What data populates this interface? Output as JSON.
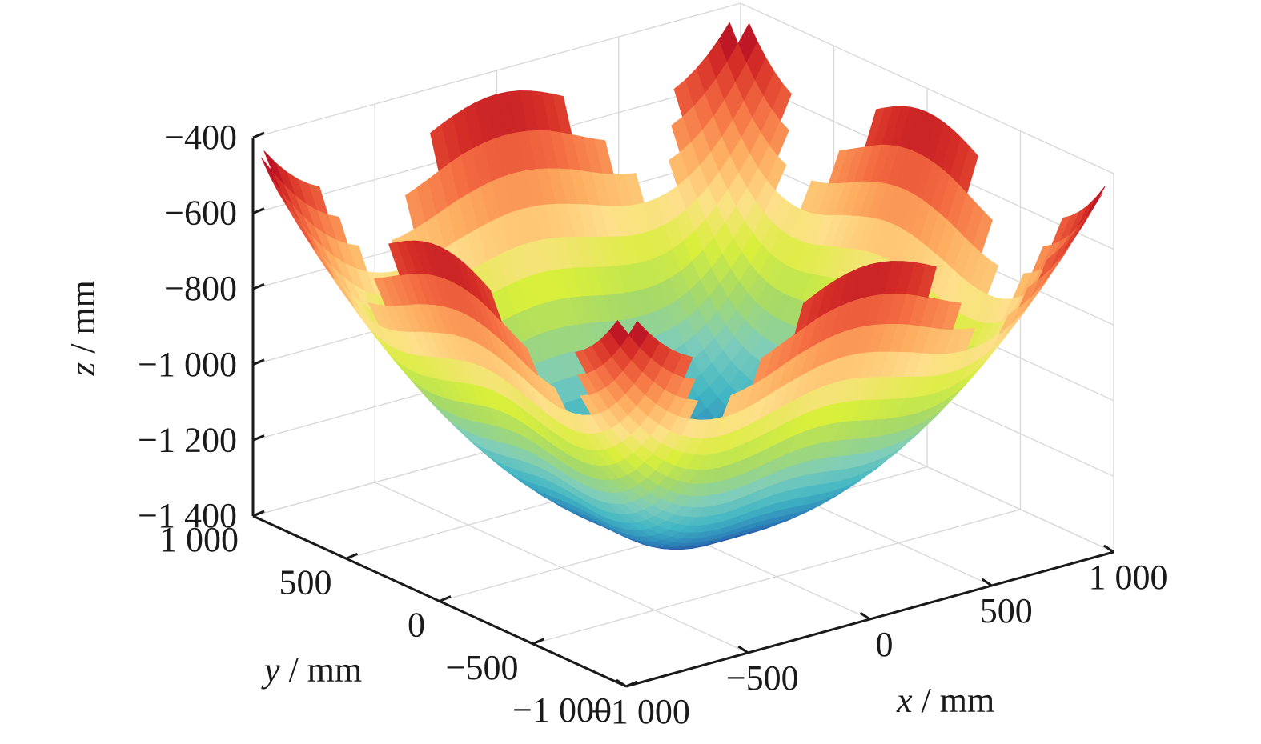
{
  "chart_data": {
    "type": "surface3d",
    "title": "",
    "xlabel": {
      "var": "x",
      "unit": " / mm"
    },
    "ylabel": {
      "var": "y",
      "unit": " / mm"
    },
    "zlabel": {
      "var": "z",
      "unit": " / mm"
    },
    "xlim": [
      -1000,
      1000
    ],
    "ylim": [
      -1000,
      1000
    ],
    "zlim": [
      -1400,
      -400
    ],
    "x_ticks": [
      -1000,
      -500,
      0,
      500,
      1000
    ],
    "y_ticks": [
      -1000,
      -500,
      0,
      500,
      1000
    ],
    "z_ticks": [
      -400,
      -600,
      -800,
      -1000,
      -1200,
      -1400
    ],
    "x_tick_labels": [
      "−1 000",
      "−500",
      "0",
      "500",
      "1 000"
    ],
    "y_tick_labels": [
      "−1 000",
      "−500",
      "0",
      "500",
      "1 000"
    ],
    "z_tick_labels": [
      "−400",
      "−600",
      "−800",
      "−1 000",
      "−1 200",
      "−1 400"
    ],
    "grid": true,
    "colormap": [
      "#253494",
      "#2c7fb8",
      "#41b6c4",
      "#7fcdbb",
      "#a6d96a",
      "#d9ef3b",
      "#fee08b",
      "#fdae61",
      "#f46d43",
      "#d73027",
      "#a50026"
    ],
    "surface": {
      "domain_radius": 1000,
      "center_depth": -1400,
      "edge_depth": -900,
      "corner_peak": -440,
      "bowl_centers": [
        [
          650,
          0
        ],
        [
          -650,
          0
        ],
        [
          0,
          650
        ],
        [
          0,
          -650
        ]
      ],
      "bowl_depth": -910
    }
  }
}
